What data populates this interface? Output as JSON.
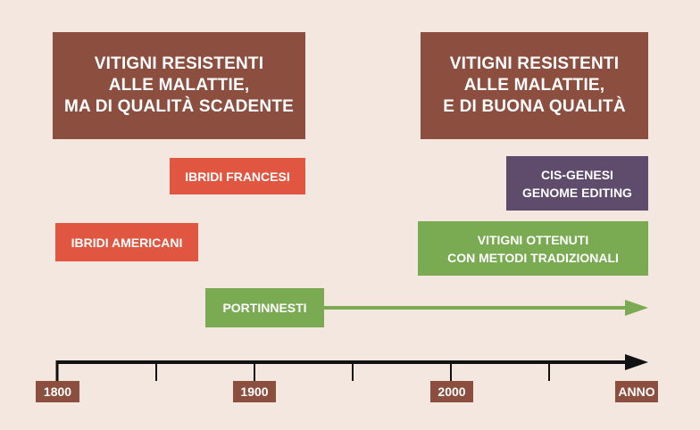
{
  "colors": {
    "background": "#f4e7df",
    "brown": "#8b4e3f",
    "red": "#e05640",
    "purple": "#5f4b6c",
    "green": "#7aab52",
    "axis": "#111111"
  },
  "headers": {
    "left": "VITIGNI RESISTENTI\nALLE MALATTIE,\nMA DI QUALITÀ SCADENTE",
    "right": "VITIGNI RESISTENTI\nALLE MALATTIE,\nE DI BUONA QUALITÀ"
  },
  "bars": {
    "ibridi_francesi": "IBRIDI FRANCESI",
    "ibridi_americani": "IBRIDI AMERICANI",
    "cis_genesi": "CIS-GENESI\nGENOME EDITING",
    "tradizionali": "VITIGNI OTTENUTI\nCON METODI TRADIZIONALI",
    "portinnesti": "PORTINNESTI"
  },
  "axis": {
    "ticks": [
      "1800",
      "1900",
      "2000"
    ],
    "end_label": "ANNO"
  }
}
